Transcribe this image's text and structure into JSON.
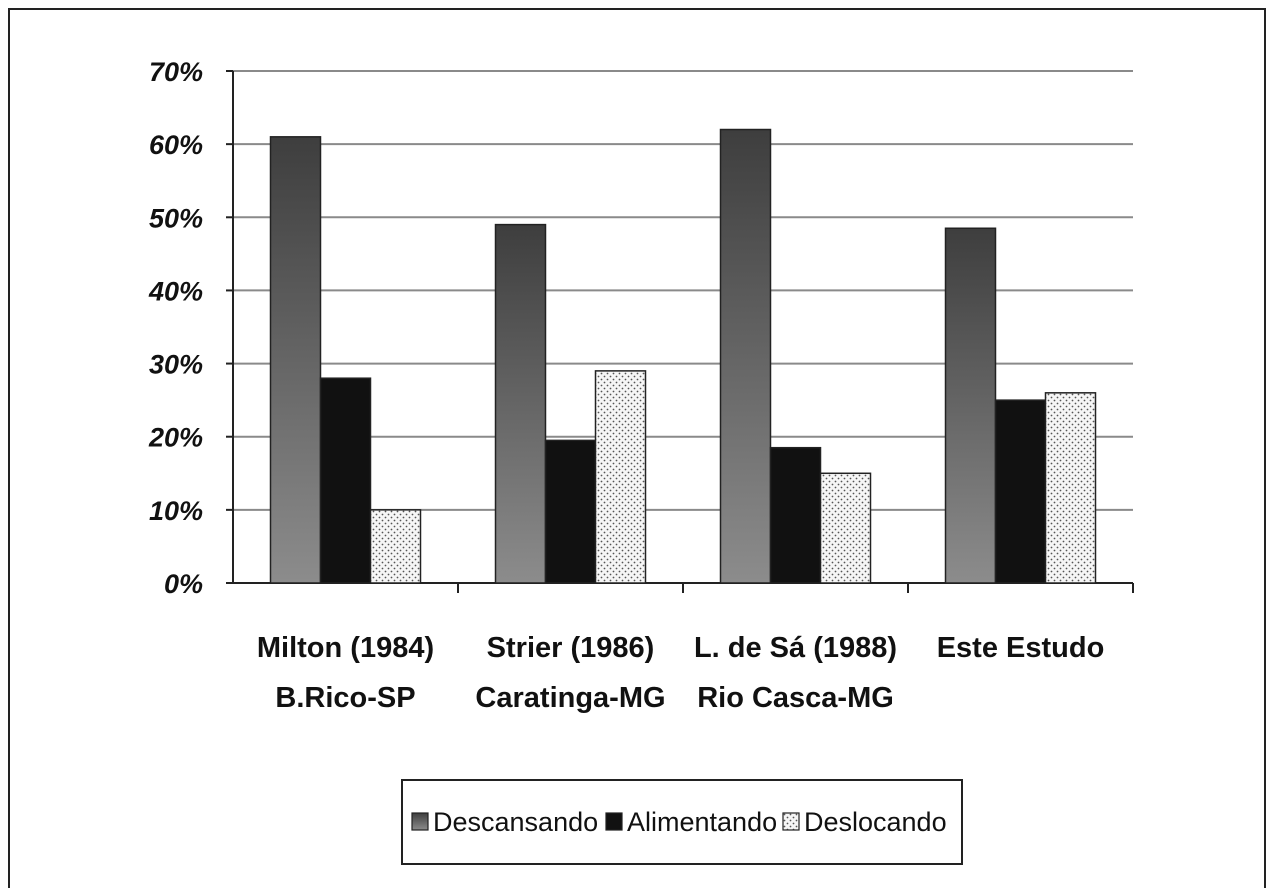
{
  "chart_data": {
    "type": "bar",
    "categories": [
      [
        "Milton (1984)",
        "B.Rico-SP"
      ],
      [
        "Strier (1986)",
        "Caratinga-MG"
      ],
      [
        "L. de Sá (1988)",
        "Rio Casca-MG"
      ],
      [
        "Este Estudo"
      ]
    ],
    "series": [
      {
        "name": "Descansando",
        "values": [
          61,
          49,
          62,
          48.5
        ],
        "pattern": "gradient",
        "color": "#5a5a5a"
      },
      {
        "name": "Alimentando",
        "values": [
          28,
          19.5,
          18.5,
          25
        ],
        "pattern": "solid",
        "color": "#111111"
      },
      {
        "name": "Deslocando",
        "values": [
          10,
          29,
          15,
          26
        ],
        "pattern": "dots",
        "color": "#f2f2f2"
      }
    ],
    "ylim": [
      0,
      70
    ],
    "yticks": [
      "0%",
      "10%",
      "20%",
      "30%",
      "40%",
      "50%",
      "60%",
      "70%"
    ],
    "grid": true,
    "legend_position": "bottom"
  }
}
